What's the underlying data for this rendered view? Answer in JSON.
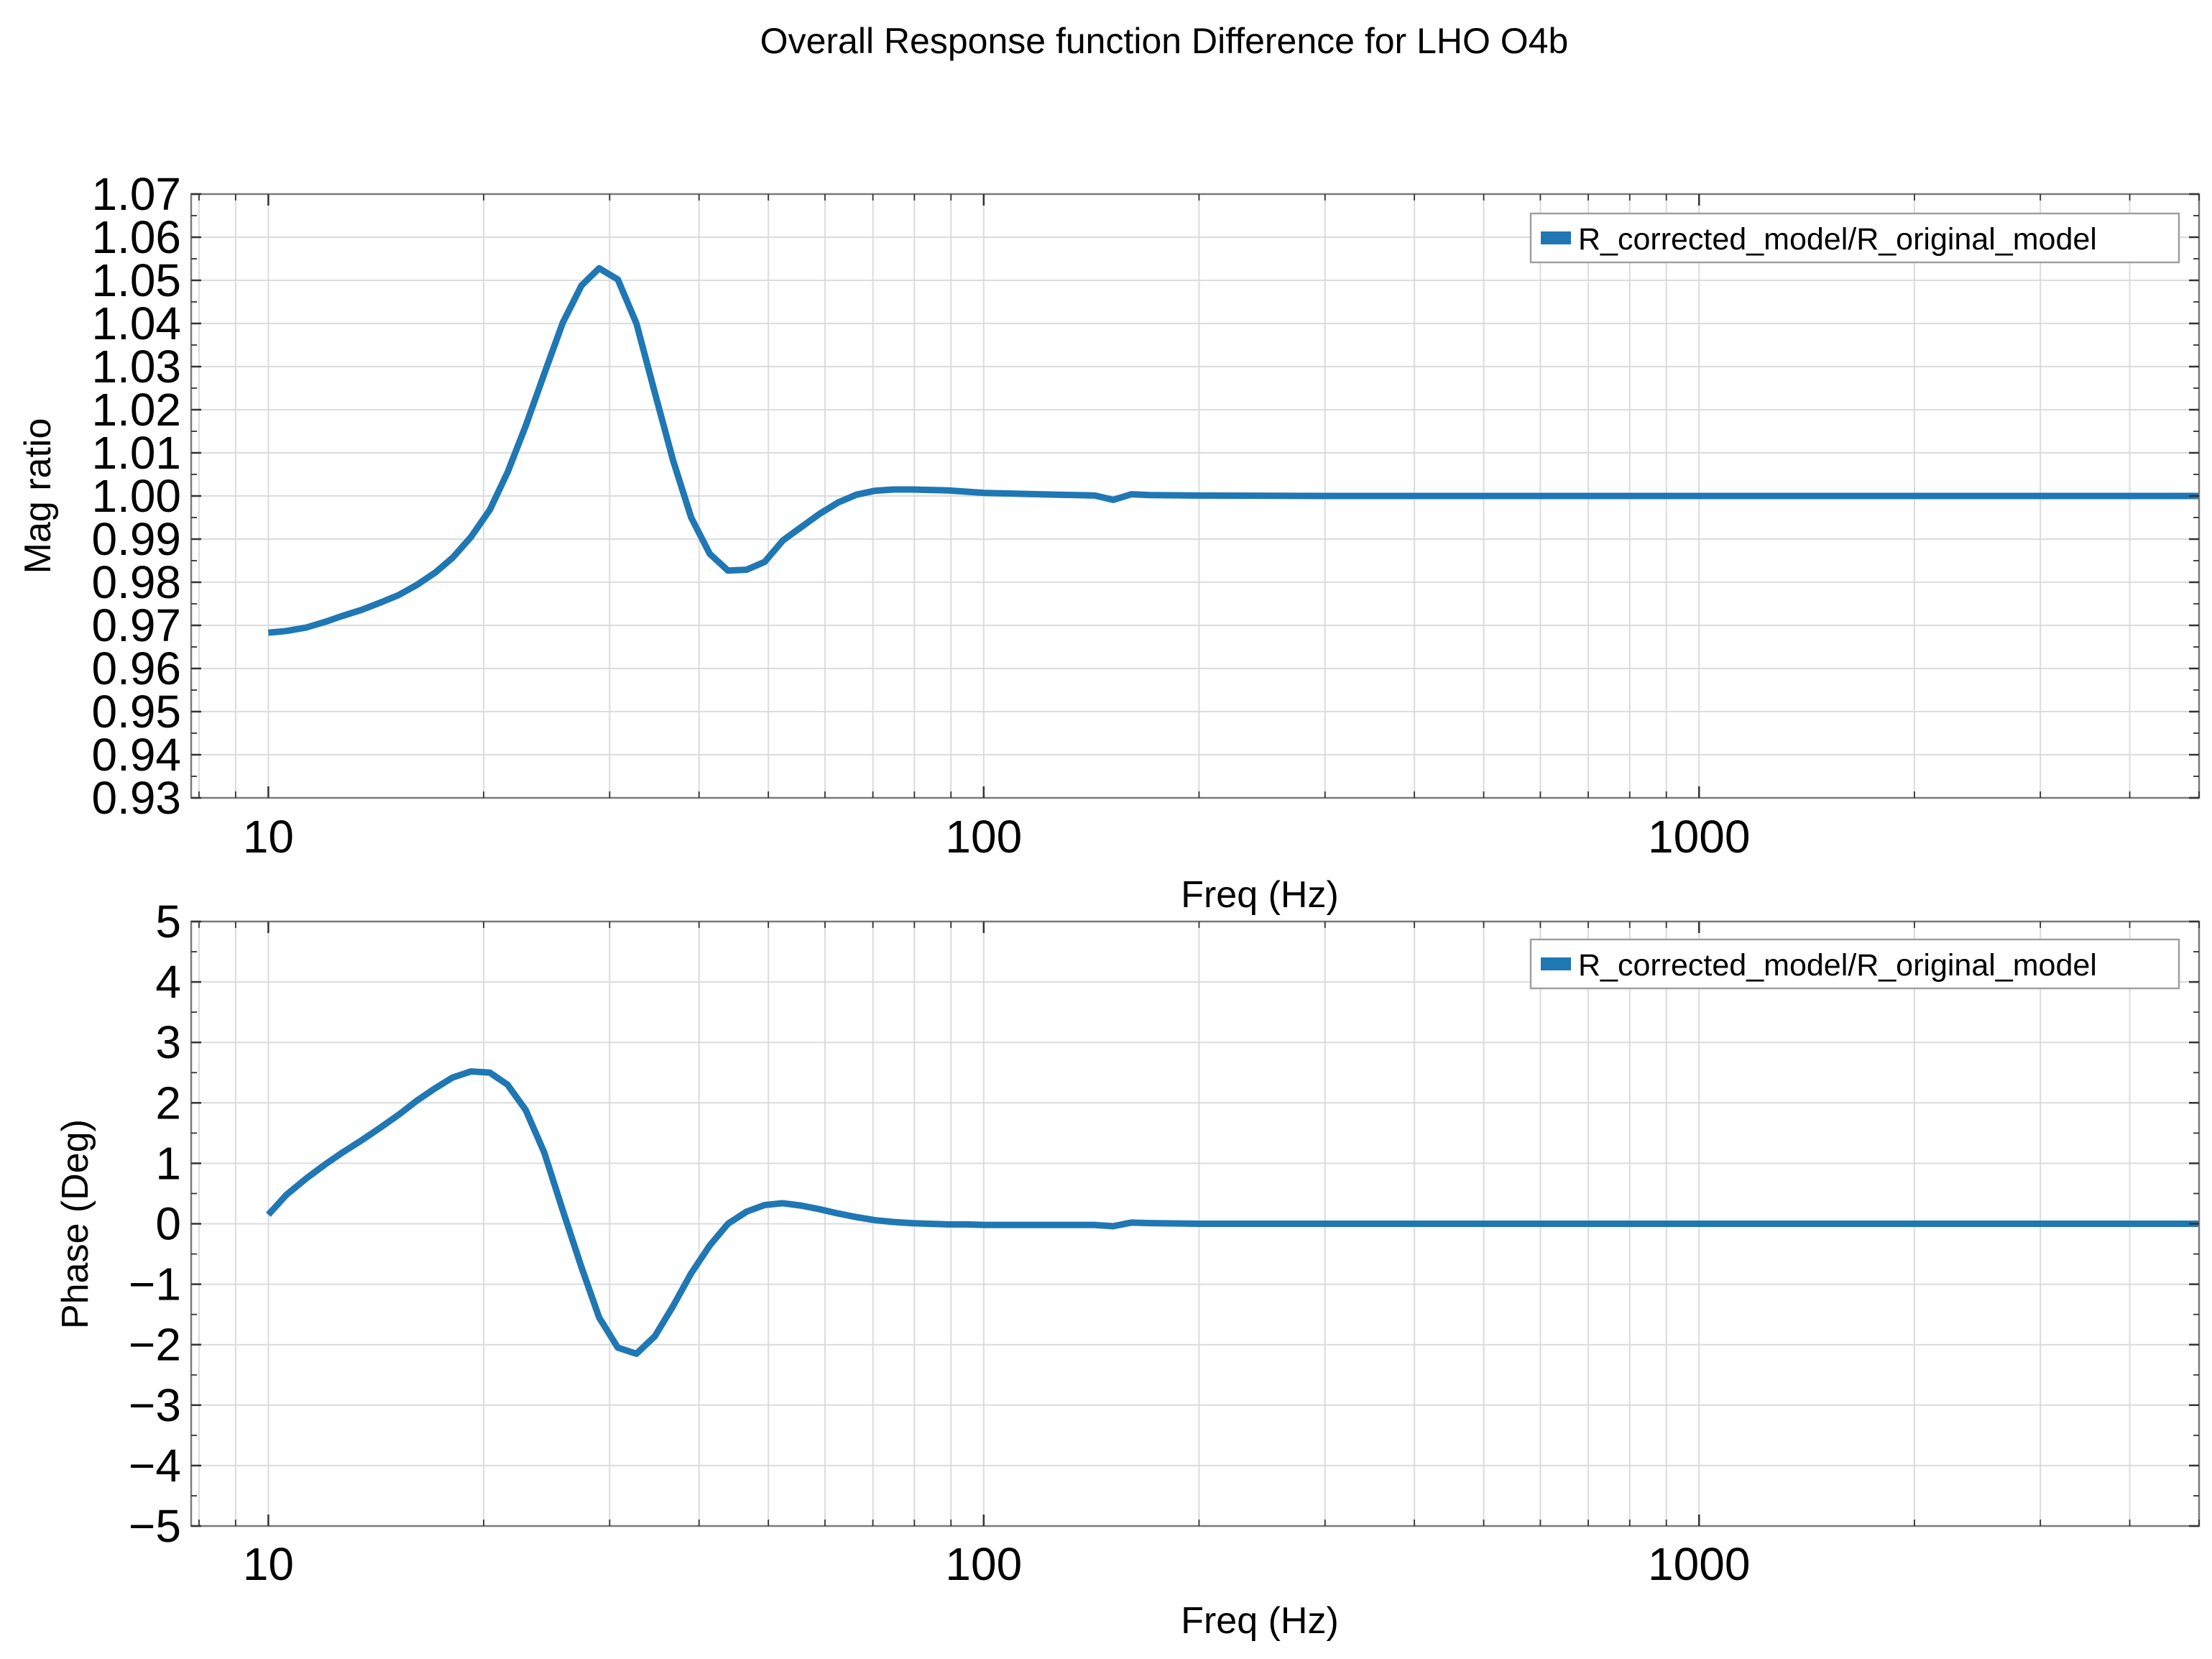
{
  "figure": {
    "suptitle": "Overall Response function Difference for LHO O4b"
  },
  "chart_data": [
    {
      "type": "line",
      "xlabel": "Freq (Hz)",
      "ylabel": "Mag ratio",
      "xscale": "log",
      "xlim": [
        7.8,
        5000
      ],
      "ylim": [
        0.93,
        1.07
      ],
      "xticks": [
        10,
        100,
        1000
      ],
      "xtick_labels": [
        "10",
        "100",
        "1000"
      ],
      "yticks": [
        0.93,
        0.94,
        0.95,
        0.96,
        0.97,
        0.98,
        0.99,
        1.0,
        1.01,
        1.02,
        1.03,
        1.04,
        1.05,
        1.06,
        1.07
      ],
      "ytick_labels": [
        "0.93",
        "0.94",
        "0.95",
        "0.96",
        "0.97",
        "0.98",
        "0.99",
        "1.00",
        "1.01",
        "1.02",
        "1.03",
        "1.04",
        "1.05",
        "1.06",
        "1.07"
      ],
      "grid": true,
      "legend_position": "top-right",
      "series": [
        {
          "name": "R_corrected_model/R_original_model",
          "color": "#1f77b4",
          "x": [
            10,
            10.6,
            11.3,
            12,
            12.7,
            13.5,
            14.3,
            15.2,
            16.1,
            17.1,
            18.1,
            19.2,
            20.4,
            21.6,
            22.9,
            24.3,
            25.8,
            27.4,
            29,
            30.8,
            32.7,
            34.7,
            36.8,
            39,
            41.4,
            43.9,
            46.6,
            49.4,
            52.4,
            55.6,
            59,
            62.6,
            66.4,
            70.4,
            74.7,
            79.2,
            84,
            89.1,
            94.5,
            100.3,
            106.4,
            112.9,
            119.7,
            127,
            134.8,
            143,
            151.7,
            160.9,
            170.7,
            200,
            300,
            500,
            1000,
            2000,
            5000
          ],
          "y": [
            0.9683,
            0.9687,
            0.9695,
            0.9708,
            0.9722,
            0.9736,
            0.9752,
            0.977,
            0.9793,
            0.9822,
            0.9857,
            0.9905,
            0.9968,
            1.0055,
            1.0163,
            1.0283,
            1.0402,
            1.0488,
            1.0528,
            1.0502,
            1.04,
            1.0239,
            1.0082,
            0.995,
            0.9866,
            0.9827,
            0.9829,
            0.9847,
            0.9897,
            0.9928,
            0.9959,
            0.9985,
            1.0003,
            1.0012,
            1.0015,
            1.0015,
            1.0014,
            1.0013,
            1.001,
            1.0007,
            1.0006,
            1.0005,
            1.0004,
            1.0003,
            1.0002,
            1.0001,
            0.9991,
            1.0004,
            1.0002,
            1.0001,
            1.0,
            1.0,
            1.0,
            1.0,
            1.0
          ]
        }
      ]
    },
    {
      "type": "line",
      "xlabel": "Freq (Hz)",
      "ylabel": "Phase (Deg)",
      "xscale": "log",
      "xlim": [
        7.8,
        5000
      ],
      "ylim": [
        -5,
        5
      ],
      "xticks": [
        10,
        100,
        1000
      ],
      "xtick_labels": [
        "10",
        "100",
        "1000"
      ],
      "yticks": [
        -5,
        -4,
        -3,
        -2,
        -1,
        0,
        1,
        2,
        3,
        4,
        5
      ],
      "ytick_labels": [
        "−5",
        "−4",
        "−3",
        "−2",
        "−1",
        "0",
        "1",
        "2",
        "3",
        "4",
        "5"
      ],
      "grid": true,
      "legend_position": "top-right",
      "series": [
        {
          "name": "R_corrected_model/R_original_model",
          "color": "#1f77b4",
          "x": [
            10,
            10.6,
            11.3,
            12,
            12.7,
            13.5,
            14.3,
            15.2,
            16.1,
            17.1,
            18.1,
            19.2,
            20.4,
            21.6,
            22.9,
            24.3,
            25.8,
            27.4,
            29,
            30.8,
            32.7,
            34.7,
            36.8,
            39,
            41.4,
            43.9,
            46.6,
            49.4,
            52.4,
            55.6,
            59,
            62.6,
            66.4,
            70.4,
            74.7,
            79.2,
            84,
            89.1,
            94.5,
            100.3,
            106.4,
            112.9,
            119.7,
            127,
            134.8,
            143,
            151.7,
            160.9,
            170.7,
            200,
            300,
            500,
            1000,
            2000,
            5000
          ],
          "y": [
            0.15,
            0.48,
            0.75,
            0.98,
            1.18,
            1.38,
            1.58,
            1.8,
            2.03,
            2.24,
            2.42,
            2.52,
            2.5,
            2.3,
            1.88,
            1.18,
            0.22,
            -0.72,
            -1.55,
            -2.05,
            -2.15,
            -1.86,
            -1.36,
            -0.82,
            -0.36,
            0.0,
            0.2,
            0.31,
            0.34,
            0.3,
            0.24,
            0.17,
            0.11,
            0.06,
            0.03,
            0.01,
            0.0,
            -0.01,
            -0.01,
            -0.02,
            -0.02,
            -0.02,
            -0.02,
            -0.02,
            -0.02,
            -0.02,
            -0.04,
            0.02,
            0.01,
            0.0,
            0.0,
            0.0,
            0.0,
            0.0,
            0.0
          ]
        }
      ]
    }
  ]
}
